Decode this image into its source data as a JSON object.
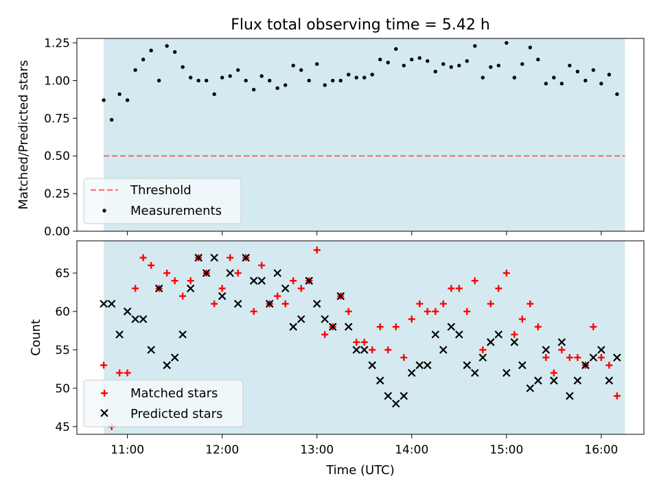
{
  "title": "Flux total observing time = 5.42 h",
  "colors": {
    "shade": "#d4eaf0",
    "threshold": "#ff7070",
    "measurement": "#000000",
    "matched": "#ff0000",
    "predicted": "#000000"
  },
  "chart_data": [
    {
      "type": "scatter",
      "ylabel": "Matched/Predicted stars",
      "ylim": [
        0,
        1.28
      ],
      "yticks": [
        0,
        0.25,
        0.5,
        0.75,
        1.0,
        1.25
      ],
      "ytick_labels": [
        "0.00",
        "0.25",
        "0.50",
        "0.75",
        "1.00",
        "1.25"
      ],
      "xlim": [
        "10:28",
        "16:27"
      ],
      "shaded_interval": [
        "10:45",
        "16:15"
      ],
      "threshold": 0.5,
      "legend_position": "lower-left",
      "series": [
        {
          "name": "Threshold",
          "kind": "dashed-line",
          "value": 0.5
        },
        {
          "name": "Measurements",
          "kind": "points",
          "x": [
            "10:45",
            "10:50",
            "10:55",
            "11:00",
            "11:05",
            "11:10",
            "11:15",
            "11:20",
            "11:25",
            "11:30",
            "11:35",
            "11:40",
            "11:45",
            "11:50",
            "11:55",
            "12:00",
            "12:05",
            "12:10",
            "12:15",
            "12:20",
            "12:25",
            "12:30",
            "12:35",
            "12:40",
            "12:45",
            "12:50",
            "12:55",
            "13:00",
            "13:05",
            "13:10",
            "13:15",
            "13:20",
            "13:25",
            "13:30",
            "13:35",
            "13:40",
            "13:45",
            "13:50",
            "13:55",
            "14:00",
            "14:05",
            "14:10",
            "14:15",
            "14:20",
            "14:25",
            "14:30",
            "14:35",
            "14:40",
            "14:45",
            "14:50",
            "14:55",
            "15:00",
            "15:05",
            "15:10",
            "15:15",
            "15:20",
            "15:25",
            "15:30",
            "15:35",
            "15:40",
            "15:45",
            "15:50",
            "15:55",
            "16:00",
            "16:05",
            "16:10"
          ],
          "y": [
            0.87,
            0.74,
            0.91,
            0.87,
            1.07,
            1.14,
            1.2,
            1.0,
            1.23,
            1.19,
            1.09,
            1.02,
            1.0,
            1.0,
            0.91,
            1.02,
            1.03,
            1.07,
            1.0,
            0.94,
            1.03,
            1.0,
            0.95,
            0.97,
            1.1,
            1.07,
            1.0,
            1.11,
            0.97,
            1.0,
            1.0,
            1.04,
            1.02,
            1.02,
            1.04,
            1.14,
            1.12,
            1.21,
            1.1,
            1.14,
            1.15,
            1.13,
            1.06,
            1.11,
            1.09,
            1.1,
            1.13,
            1.23,
            1.02,
            1.09,
            1.1,
            1.25,
            1.02,
            1.11,
            1.22,
            1.14,
            0.98,
            1.02,
            0.98,
            1.1,
            1.06,
            1.0,
            1.07,
            0.98,
            1.04,
            0.91
          ]
        }
      ]
    },
    {
      "type": "scatter",
      "title": "",
      "xlabel": "Time (UTC)",
      "ylabel": "Count",
      "ylim": [
        44,
        69.2
      ],
      "yticks": [
        45,
        50,
        55,
        60,
        65
      ],
      "ytick_labels": [
        "45",
        "50",
        "55",
        "60",
        "65"
      ],
      "xlim": [
        "10:28",
        "16:27"
      ],
      "xticks": [
        "11:00",
        "12:00",
        "13:00",
        "14:00",
        "15:00",
        "16:00"
      ],
      "shaded_interval": [
        "10:45",
        "16:15"
      ],
      "legend_position": "lower-left",
      "series": [
        {
          "name": "Matched stars",
          "kind": "plus",
          "x": [
            "10:45",
            "10:50",
            "10:55",
            "11:00",
            "11:05",
            "11:10",
            "11:15",
            "11:20",
            "11:25",
            "11:30",
            "11:35",
            "11:40",
            "11:45",
            "11:50",
            "11:55",
            "12:00",
            "12:05",
            "12:10",
            "12:15",
            "12:20",
            "12:25",
            "12:30",
            "12:35",
            "12:40",
            "12:45",
            "12:50",
            "12:55",
            "13:00",
            "13:05",
            "13:10",
            "13:15",
            "13:20",
            "13:25",
            "13:30",
            "13:35",
            "13:40",
            "13:45",
            "13:50",
            "13:55",
            "14:00",
            "14:05",
            "14:10",
            "14:15",
            "14:20",
            "14:25",
            "14:30",
            "14:35",
            "14:40",
            "14:45",
            "14:50",
            "14:55",
            "15:00",
            "15:05",
            "15:10",
            "15:15",
            "15:20",
            "15:25",
            "15:30",
            "15:35",
            "15:40",
            "15:45",
            "15:50",
            "15:55",
            "16:00",
            "16:05",
            "16:10"
          ],
          "y": [
            53,
            45,
            52,
            52,
            63,
            67,
            66,
            63,
            65,
            64,
            62,
            64,
            67,
            65,
            61,
            63,
            67,
            65,
            67,
            60,
            66,
            61,
            62,
            61,
            64,
            63,
            64,
            68,
            57,
            58,
            62,
            60,
            56,
            56,
            55,
            58,
            55,
            58,
            54,
            59,
            61,
            60,
            60,
            61,
            63,
            63,
            60,
            64,
            55,
            61,
            63,
            65,
            57,
            59,
            61,
            58,
            54,
            52,
            55,
            54,
            54,
            53,
            58,
            54,
            53,
            49
          ]
        },
        {
          "name": "Predicted stars",
          "kind": "cross",
          "x": [
            "10:45",
            "10:50",
            "10:55",
            "11:00",
            "11:05",
            "11:10",
            "11:15",
            "11:20",
            "11:25",
            "11:30",
            "11:35",
            "11:40",
            "11:45",
            "11:50",
            "11:55",
            "12:00",
            "12:05",
            "12:10",
            "12:15",
            "12:20",
            "12:25",
            "12:30",
            "12:35",
            "12:40",
            "12:45",
            "12:50",
            "12:55",
            "13:00",
            "13:05",
            "13:10",
            "13:15",
            "13:20",
            "13:25",
            "13:30",
            "13:35",
            "13:40",
            "13:45",
            "13:50",
            "13:55",
            "14:00",
            "14:05",
            "14:10",
            "14:15",
            "14:20",
            "14:25",
            "14:30",
            "14:35",
            "14:40",
            "14:45",
            "14:50",
            "14:55",
            "15:00",
            "15:05",
            "15:10",
            "15:15",
            "15:20",
            "15:25",
            "15:30",
            "15:35",
            "15:40",
            "15:45",
            "15:50",
            "15:55",
            "16:00",
            "16:05",
            "16:10"
          ],
          "y": [
            61,
            61,
            57,
            60,
            59,
            59,
            55,
            63,
            53,
            54,
            57,
            63,
            67,
            65,
            67,
            62,
            65,
            61,
            67,
            64,
            64,
            61,
            65,
            63,
            58,
            59,
            64,
            61,
            59,
            58,
            62,
            58,
            55,
            55,
            53,
            51,
            49,
            48,
            49,
            52,
            53,
            53,
            57,
            55,
            58,
            57,
            53,
            52,
            54,
            56,
            57,
            52,
            56,
            53,
            50,
            51,
            55,
            51,
            56,
            49,
            51,
            53,
            54,
            55,
            51,
            54
          ]
        }
      ]
    }
  ]
}
